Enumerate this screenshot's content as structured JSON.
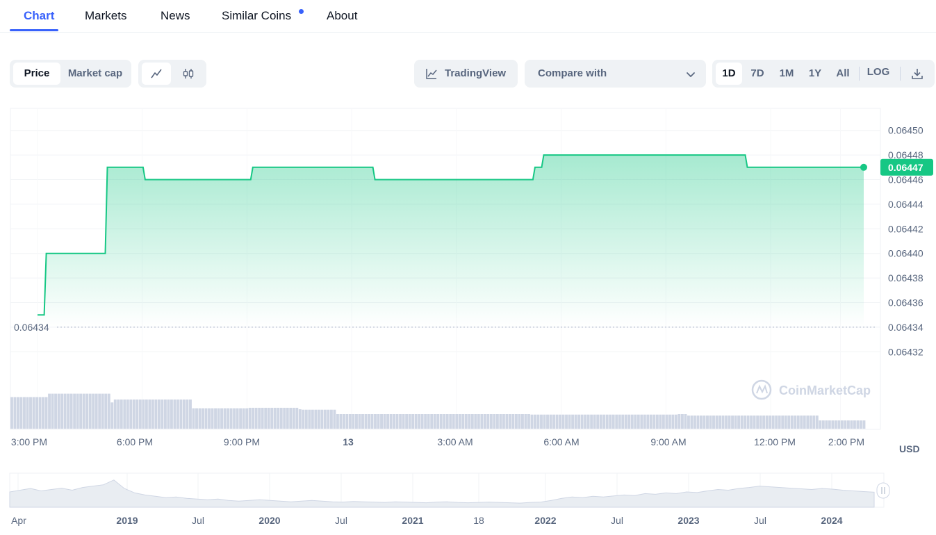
{
  "tabs": [
    {
      "label": "Chart",
      "active": true
    },
    {
      "label": "Markets",
      "active": false
    },
    {
      "label": "News",
      "active": false
    },
    {
      "label": "Similar Coins",
      "active": false,
      "has_dot": true
    },
    {
      "label": "About",
      "active": false
    }
  ],
  "toolbar": {
    "metric_toggle": [
      {
        "label": "Price",
        "active": true
      },
      {
        "label": "Market cap",
        "active": false
      }
    ],
    "chart_style": [
      {
        "icon": "line-chart-icon",
        "active": true
      },
      {
        "icon": "candlestick-icon",
        "active": false
      }
    ],
    "tradingview_label": "TradingView",
    "compare_label": "Compare with",
    "ranges": [
      {
        "label": "1D",
        "active": true
      },
      {
        "label": "7D",
        "active": false
      },
      {
        "label": "1M",
        "active": false
      },
      {
        "label": "1Y",
        "active": false
      },
      {
        "label": "All",
        "active": false
      }
    ],
    "log_label": "LOG",
    "download_icon": "download-icon"
  },
  "colors": {
    "accent": "#3861fb",
    "line": "#16c784",
    "badge": "#16c784",
    "volume": "#cfd6e4"
  },
  "watermark": "CoinMarketCap",
  "currency": "USD",
  "chart_data": {
    "type": "line",
    "series": [
      {
        "x": [
          "15:00",
          "15:15",
          "16:00",
          "16:45",
          "17:00",
          "18:00",
          "18:05",
          "19:00",
          "20:00",
          "21:00",
          "21:10",
          "22:00",
          "23:00",
          "00:00",
          "00:40",
          "01:00",
          "02:00",
          "03:00",
          "04:00",
          "05:00",
          "05:15",
          "05:30",
          "05:50",
          "06:00",
          "07:00",
          "08:00",
          "09:00",
          "10:00",
          "11:00",
          "11:20",
          "12:00",
          "13:00",
          "14:00",
          "14:40"
        ],
        "values": [
          0.06435,
          0.0644,
          0.0644,
          0.0644,
          0.06447,
          0.06447,
          0.06446,
          0.06446,
          0.06446,
          0.06446,
          0.06447,
          0.06447,
          0.06447,
          0.06447,
          0.06446,
          0.06446,
          0.06446,
          0.06446,
          0.06446,
          0.06446,
          0.06447,
          0.06448,
          0.06448,
          0.06448,
          0.06448,
          0.06448,
          0.06448,
          0.06448,
          0.06448,
          0.06447,
          0.06447,
          0.06447,
          0.06447,
          0.06447
        ]
      }
    ],
    "current_price_label": "0.06447",
    "low_label": "0.06434",
    "y_ticks": [
      "0.06450",
      "0.06448",
      "0.06446",
      "0.06444",
      "0.06442",
      "0.06440",
      "0.06438",
      "0.06436",
      "0.06434",
      "0.06432"
    ],
    "ylim": [
      0.06431,
      0.06451
    ],
    "x_ticks": [
      {
        "label": "3:00 PM",
        "bold": false
      },
      {
        "label": "6:00 PM",
        "bold": false
      },
      {
        "label": "9:00 PM",
        "bold": false
      },
      {
        "label": "13",
        "bold": true
      },
      {
        "label": "3:00 AM",
        "bold": false
      },
      {
        "label": "6:00 AM",
        "bold": false
      },
      {
        "label": "9:00 AM",
        "bold": false
      },
      {
        "label": "12:00 PM",
        "bold": false
      },
      {
        "label": "2:00 PM",
        "bold": false
      }
    ],
    "volume_levels": [
      0.65,
      0.65,
      0.65,
      0.65,
      0.65,
      0.65,
      0.65,
      0.65,
      0.65,
      0.65,
      0.65,
      0.65,
      0.72,
      0.72,
      0.72,
      0.72,
      0.72,
      0.72,
      0.72,
      0.72,
      0.72,
      0.72,
      0.72,
      0.72,
      0.72,
      0.72,
      0.72,
      0.72,
      0.72,
      0.72,
      0.72,
      0.72,
      0.54,
      0.6,
      0.6,
      0.6,
      0.6,
      0.6,
      0.6,
      0.6,
      0.6,
      0.6,
      0.6,
      0.6,
      0.6,
      0.6,
      0.6,
      0.6,
      0.6,
      0.6,
      0.6,
      0.6,
      0.6,
      0.6,
      0.6,
      0.6,
      0.6,
      0.6,
      0.42,
      0.42,
      0.42,
      0.42,
      0.42,
      0.42,
      0.42,
      0.42,
      0.42,
      0.42,
      0.42,
      0.42,
      0.42,
      0.42,
      0.42,
      0.42,
      0.42,
      0.42,
      0.43,
      0.43,
      0.43,
      0.43,
      0.43,
      0.43,
      0.43,
      0.43,
      0.43,
      0.43,
      0.43,
      0.43,
      0.43,
      0.43,
      0.43,
      0.43,
      0.4,
      0.39,
      0.39,
      0.39,
      0.39,
      0.39,
      0.39,
      0.39,
      0.39,
      0.39,
      0.39,
      0.39,
      0.3,
      0.3,
      0.3,
      0.3,
      0.3,
      0.3,
      0.3,
      0.3,
      0.3,
      0.3,
      0.3,
      0.3,
      0.3,
      0.3,
      0.3,
      0.3,
      0.3,
      0.3,
      0.3,
      0.3,
      0.3,
      0.3,
      0.3,
      0.3,
      0.3,
      0.3,
      0.3,
      0.3,
      0.3,
      0.3,
      0.3,
      0.3,
      0.3,
      0.3,
      0.3,
      0.3,
      0.3,
      0.3,
      0.3,
      0.3,
      0.3,
      0.3,
      0.3,
      0.3,
      0.3,
      0.3,
      0.3,
      0.3,
      0.3,
      0.3,
      0.3,
      0.3,
      0.3,
      0.3,
      0.3,
      0.3,
      0.3,
      0.3,
      0.3,
      0.3,
      0.3,
      0.3,
      0.29,
      0.29,
      0.29,
      0.29,
      0.29,
      0.29,
      0.29,
      0.29,
      0.29,
      0.29,
      0.29,
      0.29,
      0.29,
      0.29,
      0.29,
      0.29,
      0.29,
      0.29,
      0.29,
      0.29,
      0.29,
      0.29,
      0.29,
      0.29,
      0.29,
      0.29,
      0.29,
      0.29,
      0.29,
      0.29,
      0.29,
      0.29,
      0.29,
      0.29,
      0.29,
      0.29,
      0.29,
      0.29,
      0.29,
      0.29,
      0.29,
      0.29,
      0.29,
      0.29,
      0.29,
      0.29,
      0.29,
      0.3,
      0.3,
      0.3,
      0.27,
      0.27,
      0.27,
      0.27,
      0.27,
      0.27,
      0.27,
      0.27,
      0.27,
      0.27,
      0.27,
      0.27,
      0.27,
      0.27,
      0.27,
      0.27,
      0.27,
      0.27,
      0.27,
      0.27,
      0.27,
      0.27,
      0.27,
      0.27,
      0.27,
      0.27,
      0.27,
      0.27,
      0.27,
      0.27,
      0.27,
      0.27,
      0.27,
      0.27,
      0.27,
      0.27,
      0.27,
      0.27,
      0.27,
      0.27,
      0.27,
      0.27,
      0.17,
      0.17,
      0.17,
      0.17,
      0.17,
      0.17,
      0.17,
      0.17,
      0.17,
      0.17,
      0.17,
      0.17,
      0.17,
      0.17,
      0.17
    ],
    "navigator": {
      "x_ticks": [
        {
          "label": "Apr",
          "bold": false
        },
        {
          "label": "2019",
          "bold": true
        },
        {
          "label": "Jul",
          "bold": false
        },
        {
          "label": "2020",
          "bold": true
        },
        {
          "label": "Jul",
          "bold": false
        },
        {
          "label": "2021",
          "bold": true
        },
        {
          "label": "18",
          "bold": false
        },
        {
          "label": "2022",
          "bold": true
        },
        {
          "label": "Jul",
          "bold": false
        },
        {
          "label": "2023",
          "bold": true
        },
        {
          "label": "Jul",
          "bold": false
        },
        {
          "label": "2024",
          "bold": true
        }
      ],
      "levels": [
        0.45,
        0.5,
        0.55,
        0.48,
        0.52,
        0.56,
        0.5,
        0.58,
        0.62,
        0.66,
        0.8,
        0.55,
        0.42,
        0.36,
        0.32,
        0.28,
        0.3,
        0.26,
        0.24,
        0.22,
        0.24,
        0.2,
        0.18,
        0.2,
        0.22,
        0.2,
        0.18,
        0.16,
        0.18,
        0.2,
        0.18,
        0.16,
        0.15,
        0.17,
        0.16,
        0.15,
        0.14,
        0.16,
        0.15,
        0.14,
        0.13,
        0.15,
        0.16,
        0.14,
        0.13,
        0.14,
        0.15,
        0.14,
        0.13,
        0.12,
        0.14,
        0.15,
        0.2,
        0.26,
        0.3,
        0.28,
        0.32,
        0.3,
        0.33,
        0.36,
        0.34,
        0.4,
        0.38,
        0.42,
        0.4,
        0.45,
        0.43,
        0.48,
        0.52,
        0.5,
        0.55,
        0.58,
        0.62,
        0.6,
        0.58,
        0.56,
        0.54,
        0.52,
        0.55,
        0.53,
        0.5,
        0.48,
        0.46,
        0.44
      ],
      "grid": "on"
    },
    "grid": "on",
    "y_axis_position": "right"
  }
}
